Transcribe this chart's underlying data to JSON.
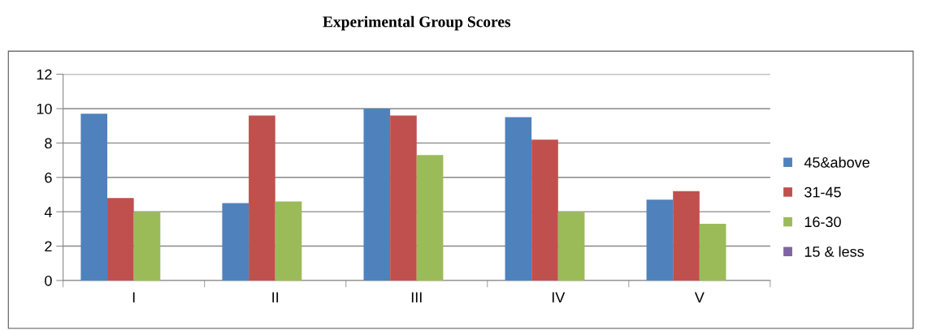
{
  "chart_data": {
    "type": "bar",
    "title": "Experimental Group Scores",
    "categories": [
      "I",
      "II",
      "III",
      "IV",
      "V"
    ],
    "series": [
      {
        "name": "45&above",
        "color": "#4f81bd",
        "values": [
          9.7,
          4.5,
          10.0,
          9.5,
          4.7
        ]
      },
      {
        "name": "31-45",
        "color": "#c0504d",
        "values": [
          4.8,
          9.6,
          9.6,
          8.2,
          5.2
        ]
      },
      {
        "name": "16-30",
        "color": "#9bbb59",
        "values": [
          4.0,
          4.6,
          7.3,
          4.0,
          3.3
        ]
      },
      {
        "name": "15 & less",
        "color": "#8064a2",
        "values": [
          null,
          null,
          null,
          null,
          null
        ]
      }
    ],
    "ylim": [
      0,
      12
    ],
    "yticks": [
      0,
      2,
      4,
      6,
      8,
      10,
      12
    ],
    "grid": "y",
    "legend": "right"
  }
}
